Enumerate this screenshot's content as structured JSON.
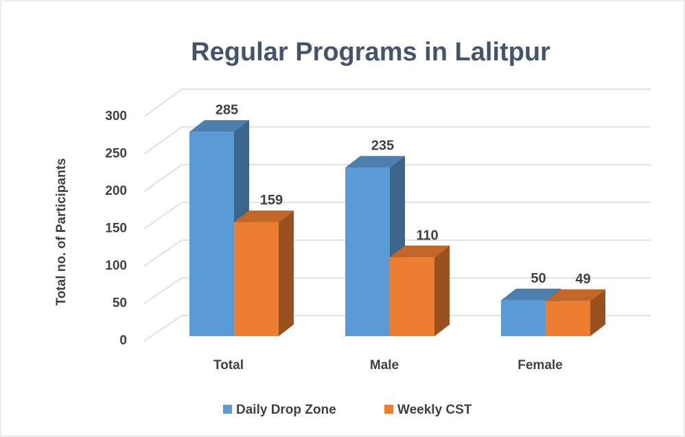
{
  "chart_data": {
    "type": "bar3d",
    "title": "Regular Programs in Lalitpur",
    "y_label": "Total no. of Participants",
    "categories": [
      "Total",
      "Male",
      "Female"
    ],
    "series": [
      {
        "name": "Daily Drop Zone",
        "color": "#5b9bd5",
        "values": [
          285,
          235,
          50
        ]
      },
      {
        "name": "Weekly CST",
        "color": "#ed7d31",
        "values": [
          159,
          110,
          49
        ]
      }
    ],
    "ylim": [
      0,
      300
    ],
    "yticks": [
      0,
      50,
      100,
      150,
      200,
      250,
      300
    ],
    "grid": true,
    "legend": "bottom"
  }
}
